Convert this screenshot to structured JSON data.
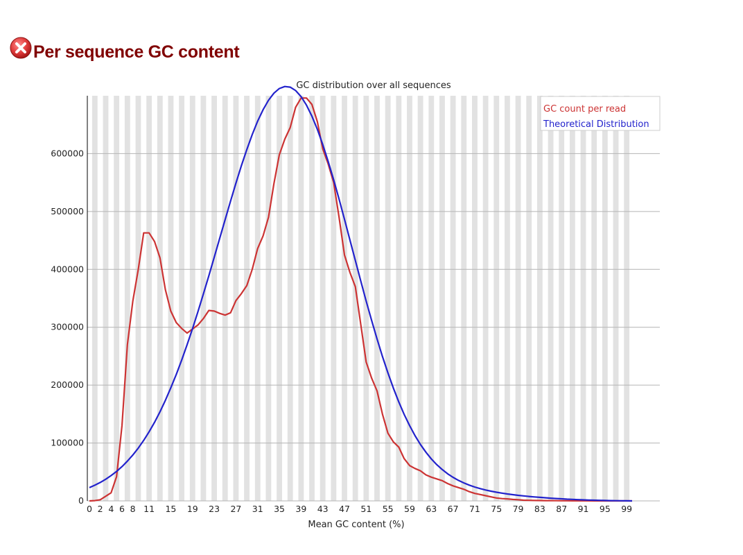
{
  "header": {
    "title": "Per sequence GC content",
    "status_icon": "error-icon",
    "status_color": "#e03c3c"
  },
  "chart_data": {
    "type": "line",
    "title": "GC distribution over all sequences",
    "xlabel": "Mean GC content (%)",
    "ylabel": "",
    "xlim": [
      0,
      100
    ],
    "ylim": [
      0,
      700000
    ],
    "x_ticks": [
      0,
      2,
      4,
      6,
      8,
      11,
      15,
      19,
      23,
      27,
      31,
      35,
      39,
      43,
      47,
      51,
      55,
      59,
      63,
      67,
      71,
      75,
      79,
      83,
      87,
      91,
      95,
      99
    ],
    "y_ticks": [
      0,
      100000,
      200000,
      300000,
      400000,
      500000,
      600000
    ],
    "grid": true,
    "legend_position": "top-right",
    "x": [
      0,
      1,
      2,
      3,
      4,
      5,
      6,
      7,
      8,
      9,
      10,
      11,
      12,
      13,
      14,
      15,
      16,
      17,
      18,
      19,
      20,
      21,
      22,
      23,
      24,
      25,
      26,
      27,
      28,
      29,
      30,
      31,
      32,
      33,
      34,
      35,
      36,
      37,
      38,
      39,
      40,
      41,
      42,
      43,
      44,
      45,
      46,
      47,
      48,
      49,
      50,
      51,
      52,
      53,
      54,
      55,
      56,
      57,
      58,
      59,
      60,
      61,
      62,
      63,
      64,
      65,
      66,
      67,
      68,
      69,
      70,
      71,
      72,
      73,
      74,
      75,
      76,
      77,
      78,
      79,
      80,
      81,
      82,
      83,
      84,
      85,
      86,
      87,
      88,
      89,
      90,
      91,
      92,
      93,
      94,
      95,
      96,
      97,
      98,
      99,
      100
    ],
    "series": [
      {
        "name": "GC count per read",
        "color": "#cc3333",
        "values": [
          0,
          500,
          2000,
          8000,
          14000,
          42000,
          130000,
          270000,
          345000,
          400000,
          463000,
          463000,
          448000,
          420000,
          365000,
          328000,
          308000,
          298000,
          290000,
          297000,
          304000,
          315000,
          329000,
          328000,
          324000,
          321000,
          325000,
          346000,
          358000,
          372000,
          400000,
          436000,
          458000,
          490000,
          548000,
          598000,
          625000,
          645000,
          680000,
          696000,
          696000,
          685000,
          655000,
          608000,
          582000,
          550000,
          490000,
          425000,
          395000,
          370000,
          305000,
          240000,
          212000,
          190000,
          150000,
          117000,
          102000,
          93000,
          73000,
          61000,
          56000,
          52000,
          45000,
          41000,
          38000,
          35000,
          30000,
          26000,
          23000,
          20000,
          16000,
          13000,
          11000,
          9000,
          7000,
          5000,
          4000,
          3500,
          2500,
          2000,
          1200,
          1000,
          700,
          600,
          500,
          400,
          300,
          250,
          200,
          150,
          100,
          80,
          60,
          50,
          40,
          30,
          20,
          10,
          5,
          2,
          0
        ]
      },
      {
        "name": "Theoretical Distribution",
        "color": "#2222cc",
        "values": [
          22930,
          27060,
          31840,
          37370,
          43710,
          50970,
          59240,
          68630,
          79240,
          91170,
          104530,
          119400,
          135850,
          153940,
          173720,
          195200,
          218390,
          243250,
          269710,
          297660,
          326960,
          357440,
          388860,
          420940,
          453370,
          485800,
          517820,
          549010,
          578900,
          607020,
          632880,
          655990,
          675900,
          692190,
          704490,
          712500,
          715990,
          714820,
          708990,
          698570,
          683730,
          664730,
          641900,
          615660,
          586480,
          554880,
          521410,
          486630,
          451100,
          415370,
          379930,
          345250,
          311730,
          279720,
          249470,
          221200,
          195060,
          171130,
          149460,
          130000,
          112680,
          97430,
          84110,
          72570,
          62640,
          54130,
          46880,
          40700,
          35450,
          30990,
          27200,
          23970,
          21200,
          18820,
          16760,
          14960,
          13380,
          11990,
          10740,
          9620,
          8600,
          7670,
          6830,
          6060,
          5350,
          4700,
          4100,
          3550,
          3050,
          2590,
          2170,
          1800,
          1460,
          1160,
          900,
          670,
          480,
          320,
          190,
          90,
          0
        ]
      }
    ]
  }
}
